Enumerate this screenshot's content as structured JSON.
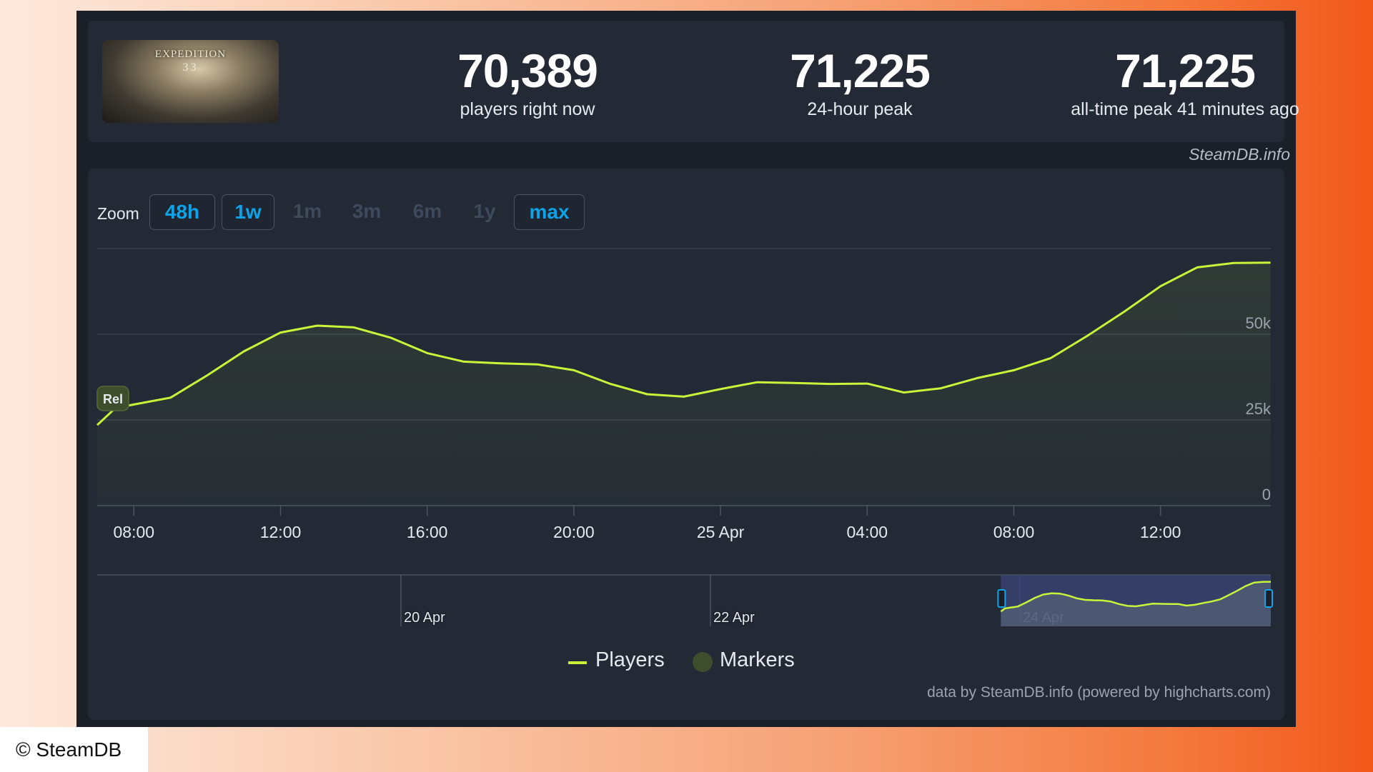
{
  "game": {
    "thumbnail_title": "EXPEDITION",
    "thumbnail_subtitle": "33"
  },
  "stats": [
    {
      "value": "70,389",
      "label": "players right now"
    },
    {
      "value": "71,225",
      "label": "24-hour peak"
    },
    {
      "value": "71,225",
      "label": "all-time peak 41 minutes ago"
    }
  ],
  "watermark": "SteamDB.info",
  "zoom": {
    "label": "Zoom",
    "buttons": [
      {
        "label": "48h",
        "enabled": true
      },
      {
        "label": "1w",
        "enabled": true
      },
      {
        "label": "1m",
        "enabled": false
      },
      {
        "label": "3m",
        "enabled": false
      },
      {
        "label": "6m",
        "enabled": false
      },
      {
        "label": "1y",
        "enabled": false
      },
      {
        "label": "max",
        "enabled": true
      }
    ]
  },
  "chart_data": {
    "type": "area",
    "series": [
      {
        "name": "Players",
        "color": "#c8f53a",
        "x": [
          "07:00",
          "07:30",
          "08:00",
          "09:00",
          "10:00",
          "11:00",
          "12:00",
          "13:00",
          "14:00",
          "15:00",
          "16:00",
          "17:00",
          "18:00",
          "19:00",
          "20:00",
          "21:00",
          "22:00",
          "23:00",
          "00:00",
          "01:00",
          "02:00",
          "03:00",
          "04:00",
          "05:00",
          "06:00",
          "07:00",
          "08:00",
          "09:00",
          "10:00",
          "11:00",
          "12:00",
          "13:00",
          "14:00",
          "15:00"
        ],
        "values": [
          23500,
          28500,
          29500,
          31500,
          38000,
          45000,
          50500,
          52500,
          52000,
          49000,
          44500,
          42000,
          41500,
          41200,
          39500,
          35500,
          32500,
          31800,
          34000,
          36000,
          35800,
          35500,
          35600,
          33000,
          34200,
          37200,
          39500,
          43000,
          49500,
          56500,
          64000,
          69500,
          70800,
          70900
        ]
      }
    ],
    "x_tick_labels": [
      "08:00",
      "12:00",
      "16:00",
      "20:00",
      "25 Apr",
      "04:00",
      "08:00",
      "12:00"
    ],
    "y_tick_labels": [
      "0",
      "25k",
      "50k"
    ],
    "ylim": [
      0,
      75000
    ],
    "marker": {
      "label": "Rel",
      "color": "#3e4d2c"
    },
    "navigator": {
      "labels": [
        "20 Apr",
        "22 Apr",
        "24 Apr"
      ],
      "selected_range_fraction": [
        0.77,
        1.0
      ],
      "color": "#3b4475"
    },
    "legend": [
      {
        "name": "Players",
        "color": "#c8f53a"
      },
      {
        "name": "Markers",
        "color": "#3e4d2c"
      }
    ],
    "legend_position": "bottom-center",
    "grid": true
  },
  "credits": "data by SteamDB.info (powered by highcharts.com)",
  "copyright": "© SteamDB"
}
